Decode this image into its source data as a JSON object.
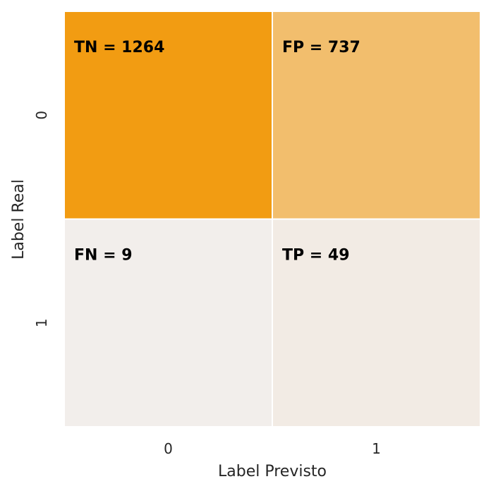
{
  "chart_data": {
    "type": "heatmap",
    "title": "",
    "xlabel": "Label Previsto",
    "ylabel": "Label Real",
    "x_categories": [
      "0",
      "1"
    ],
    "y_categories": [
      "0",
      "1"
    ],
    "values": [
      [
        1264,
        737
      ],
      [
        9,
        49
      ]
    ],
    "cell_labels": [
      [
        "TN = 1264",
        "FP = 737"
      ],
      [
        "FN = 9",
        "TP = 49"
      ]
    ],
    "colormap": {
      "low": "#f2eeeb",
      "high": "#f29c12"
    },
    "colorbar": false,
    "grid_line_color": "#ffffff"
  }
}
